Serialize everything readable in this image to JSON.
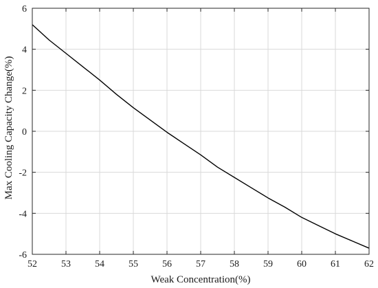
{
  "chart_data": {
    "type": "line",
    "title": "",
    "xlabel": "Weak Concentration(%)",
    "ylabel": "Max Cooling Capacity Change(%)",
    "xlim": [
      52,
      62
    ],
    "ylim": [
      -6,
      6
    ],
    "xticks": [
      52,
      53,
      54,
      55,
      56,
      57,
      58,
      59,
      60,
      61,
      62
    ],
    "yticks": [
      -6,
      -4,
      -2,
      0,
      2,
      4,
      6
    ],
    "grid": true,
    "colors": {
      "line": "#000000",
      "grid": "#d9d9d9",
      "axes": "#262626"
    },
    "series": [
      {
        "x": [
          52,
          52.5,
          53,
          53.5,
          54,
          54.5,
          55,
          55.5,
          56,
          56.5,
          57,
          57.5,
          58,
          58.5,
          59,
          59.5,
          60,
          60.5,
          61,
          61.5,
          62
        ],
        "y": [
          5.2,
          4.45,
          3.8,
          3.15,
          2.5,
          1.8,
          1.15,
          0.55,
          -0.05,
          -0.6,
          -1.15,
          -1.75,
          -2.25,
          -2.75,
          -3.25,
          -3.7,
          -4.2,
          -4.6,
          -5.0,
          -5.35,
          -5.7
        ]
      }
    ]
  }
}
